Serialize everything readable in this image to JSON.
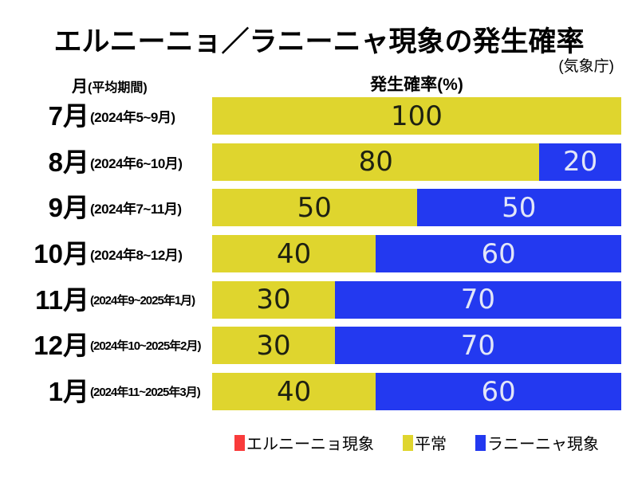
{
  "page": {
    "background": "#ffffff"
  },
  "chart_data": {
    "type": "bar",
    "stacked": true,
    "orientation": "horizontal",
    "title": "エルニーニョ／ラニーニャ現象の発生確率",
    "source_note": "(気象庁)",
    "axis_headers": {
      "row_header": "月",
      "row_header_note": "(平均期間)",
      "value_header": "発生確率(%)"
    },
    "unit": "%",
    "xlim": [
      0,
      100
    ],
    "grid": false,
    "categories": [
      "7月",
      "8月",
      "9月",
      "10月",
      "11月",
      "12月",
      "1月"
    ],
    "periods": [
      "(2024年5~9月)",
      "(2024年6~10月)",
      "(2024年7~11月)",
      "(2024年8~12月)",
      "(2024年9~2025年1月)",
      "(2024年10~2025年2月)",
      "(2024年11~2025年3月)"
    ],
    "series": [
      {
        "name": "エルニーニョ現象",
        "color": "#f93b3b",
        "values": [
          0,
          0,
          0,
          0,
          0,
          0,
          0
        ]
      },
      {
        "name": "平常",
        "color": "#dfd52e",
        "values": [
          100,
          80,
          50,
          40,
          30,
          30,
          40
        ]
      },
      {
        "name": "ラニーニャ現象",
        "color": "#2339f0",
        "values": [
          0,
          20,
          50,
          60,
          70,
          70,
          60
        ]
      }
    ],
    "colors": {
      "elnino": "#f93b3b",
      "normal": "#dfd52e",
      "lanina": "#2339f0"
    },
    "rows": [
      {
        "month": "7月",
        "period": "(2024年5~9月)",
        "normal": 100,
        "lanina": 0
      },
      {
        "month": "8月",
        "period": "(2024年6~10月)",
        "normal": 80,
        "lanina": 20
      },
      {
        "month": "9月",
        "period": "(2024年7~11月)",
        "normal": 50,
        "lanina": 50
      },
      {
        "month": "10月",
        "period": "(2024年8~12月)",
        "normal": 40,
        "lanina": 60
      },
      {
        "month": "11月",
        "period": "(2024年9~2025年1月)",
        "normal": 30,
        "lanina": 70
      },
      {
        "month": "12月",
        "period": "(2024年10~2025年2月)",
        "normal": 30,
        "lanina": 70
      },
      {
        "month": "1月",
        "period": "(2024年11~2025年3月)",
        "normal": 40,
        "lanina": 60
      }
    ],
    "legend": {
      "position": "bottom",
      "entries": [
        {
          "label": "エルニーニョ現象",
          "color": "#f93b3b"
        },
        {
          "label": "平常",
          "color": "#dfd52e"
        },
        {
          "label": "ラニーニャ現象",
          "color": "#2339f0"
        }
      ]
    }
  }
}
